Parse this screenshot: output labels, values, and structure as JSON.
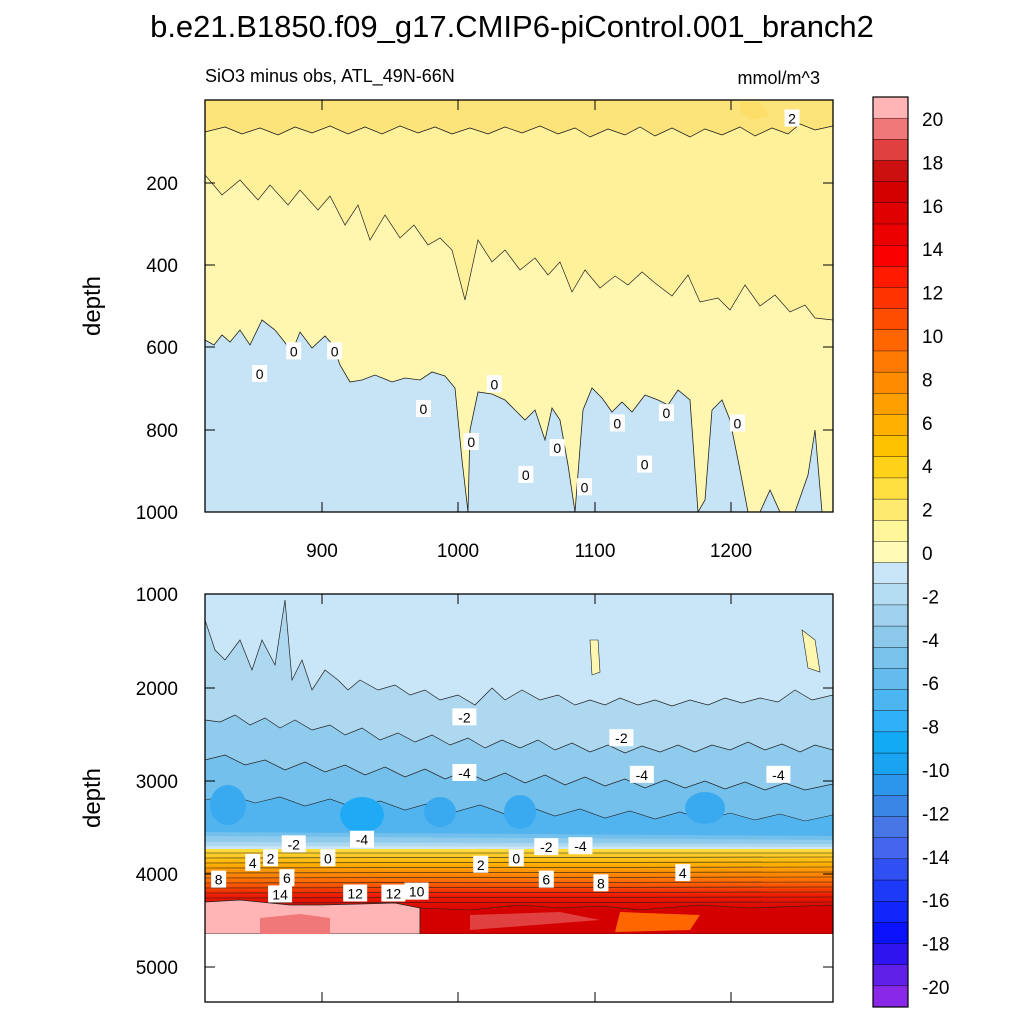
{
  "figure": {
    "title": "b.e21.B1850.f09_g17.CMIP6-piControl.001_branch2",
    "subtitle_left": "SiO3 minus obs, ATL_49N-66N",
    "subtitle_right": "mmol/m^3"
  },
  "chart_data": [
    {
      "type": "heatmap",
      "panel": "upper",
      "ylabel": "depth",
      "xlim": [
        810,
        1270
      ],
      "ylim": [
        0,
        1000
      ],
      "y_inverted": true,
      "xticks": [
        900,
        1000,
        1100,
        1200
      ],
      "yticks": [
        200,
        400,
        600,
        800,
        1000
      ],
      "contour_labels": [
        {
          "text": "2",
          "x": 1240,
          "y": 45
        },
        {
          "text": "0",
          "x": 875,
          "y": 610
        },
        {
          "text": "0",
          "x": 905,
          "y": 610
        },
        {
          "text": "0",
          "x": 850,
          "y": 665
        },
        {
          "text": "0",
          "x": 1022,
          "y": 690
        },
        {
          "text": "0",
          "x": 970,
          "y": 750
        },
        {
          "text": "0",
          "x": 1148,
          "y": 760
        },
        {
          "text": "0",
          "x": 1112,
          "y": 785
        },
        {
          "text": "0",
          "x": 1200,
          "y": 785
        },
        {
          "text": "0",
          "x": 1005,
          "y": 830
        },
        {
          "text": "0",
          "x": 1068,
          "y": 845
        },
        {
          "text": "0",
          "x": 1132,
          "y": 885
        },
        {
          "text": "0",
          "x": 1045,
          "y": 910
        },
        {
          "text": "0",
          "x": 1088,
          "y": 940
        }
      ]
    },
    {
      "type": "heatmap",
      "panel": "lower",
      "ylabel": "depth",
      "xlim": [
        810,
        1270
      ],
      "ylim": [
        1000,
        5400
      ],
      "y_inverted": true,
      "yticks": [
        1000,
        2000,
        3000,
        4000,
        5000
      ],
      "contour_labels": [
        {
          "text": "-2",
          "x": 1000,
          "y": 2330
        },
        {
          "text": "-2",
          "x": 1115,
          "y": 2555
        },
        {
          "text": "-4",
          "x": 1000,
          "y": 2930
        },
        {
          "text": "-4",
          "x": 1130,
          "y": 2950
        },
        {
          "text": "-4",
          "x": 1230,
          "y": 2950
        },
        {
          "text": "-2",
          "x": 875,
          "y": 3700
        },
        {
          "text": "-4",
          "x": 925,
          "y": 3650
        },
        {
          "text": "-2",
          "x": 1060,
          "y": 3730
        },
        {
          "text": "-4",
          "x": 1085,
          "y": 3720
        },
        {
          "text": "0",
          "x": 900,
          "y": 3850
        },
        {
          "text": "0",
          "x": 1038,
          "y": 3850
        },
        {
          "text": "2",
          "x": 858,
          "y": 3850
        },
        {
          "text": "2",
          "x": 1012,
          "y": 3920
        },
        {
          "text": "4",
          "x": 845,
          "y": 3900
        },
        {
          "text": "4",
          "x": 1160,
          "y": 4010
        },
        {
          "text": "6",
          "x": 870,
          "y": 4065
        },
        {
          "text": "6",
          "x": 1060,
          "y": 4080
        },
        {
          "text": "8",
          "x": 820,
          "y": 4080
        },
        {
          "text": "8",
          "x": 1100,
          "y": 4120
        },
        {
          "text": "10",
          "x": 965,
          "y": 4210
        },
        {
          "text": "12",
          "x": 920,
          "y": 4230
        },
        {
          "text": "12",
          "x": 948,
          "y": 4230
        },
        {
          "text": "14",
          "x": 865,
          "y": 4240
        }
      ]
    }
  ],
  "colorbar": {
    "labels": [
      "20",
      "18",
      "16",
      "14",
      "12",
      "10",
      "8",
      "6",
      "4",
      "2",
      "0",
      "-2",
      "-4",
      "-6",
      "-8",
      "-10",
      "-12",
      "-14",
      "-16",
      "-18",
      "-20"
    ],
    "colors": [
      "#ffb5b5",
      "#f07878",
      "#e04040",
      "#cc1010",
      "#d40000",
      "#e00000",
      "#ec0000",
      "#fa0000",
      "#ff1a00",
      "#ff3300",
      "#ff4d00",
      "#ff6600",
      "#ff7a00",
      "#ff8c00",
      "#ff9f00",
      "#ffb000",
      "#ffc200",
      "#ffd21a",
      "#ffe040",
      "#ffea70",
      "#fff59a",
      "#fffab5",
      "#c8e6f7",
      "#b4dcf2",
      "#a0d2ee",
      "#8cc8ea",
      "#78c2ec",
      "#64bcee",
      "#4cb6f2",
      "#30b0f6",
      "#10aaf5",
      "#1aa3f0",
      "#2b96eb",
      "#3a86e6",
      "#4876e6",
      "#4466ee",
      "#3050f4",
      "#1c3af8",
      "#1026fa",
      "#0a12fb",
      "#3014f0",
      "#6020e8",
      "#8a28ea"
    ]
  }
}
